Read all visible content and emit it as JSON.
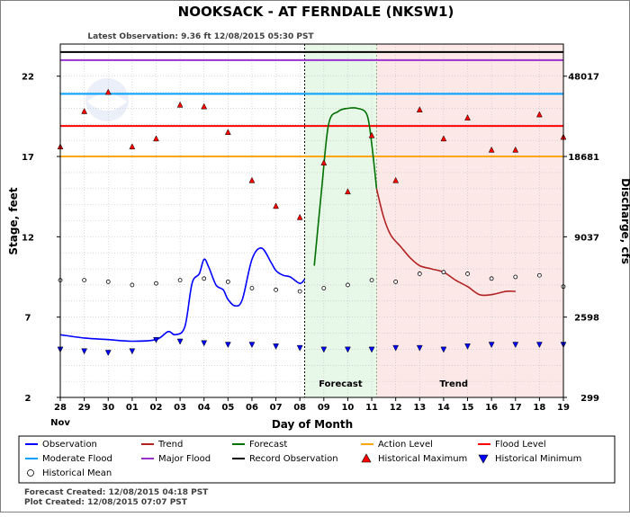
{
  "header": {
    "title": "NOOKSACK - AT FERNDALE  (NKSW1)",
    "latest_observation": "Latest Observation: 9.36 ft 12/08/2015 05:30 PST"
  },
  "footer": {
    "forecast_created": "Forecast Created: 12/08/2015 04:18 PST",
    "plot_created": "Plot Created: 12/08/2015 07:07 PST"
  },
  "colors": {
    "observation": "#0000ff",
    "trend": "#b22222",
    "forecast": "#007000",
    "action": "#ffa500",
    "flood": "#ff0000",
    "moderate": "#00a0ff",
    "major": "#9932cc",
    "record": "#000000",
    "hist_max": "#ff0000",
    "hist_min": "#0000ff",
    "forecast_zone": "#e8f8e8",
    "trend_zone": "#fde8e8"
  },
  "chart_data": {
    "type": "line",
    "xlabel": "Day of Month",
    "ylabel_left": "Stage, feet",
    "ylabel_right": "Discharge, cfs",
    "month_label": "Nov",
    "x_ticks": [
      "28",
      "29",
      "30",
      "01",
      "02",
      "03",
      "04",
      "05",
      "06",
      "07",
      "08",
      "09",
      "10",
      "11",
      "12",
      "13",
      "14",
      "15",
      "16",
      "17",
      "18",
      "19"
    ],
    "xlim": [
      0,
      21
    ],
    "ylim": [
      2,
      24
    ],
    "y_ticks_left": [
      2,
      7,
      12,
      17,
      22
    ],
    "y_ticks_right": [
      {
        "stage": 2,
        "label": "299"
      },
      {
        "stage": 7,
        "label": "2598"
      },
      {
        "stage": 12,
        "label": "9037"
      },
      {
        "stage": 17,
        "label": "18681"
      },
      {
        "stage": 22,
        "label": "48017"
      }
    ],
    "zones": [
      {
        "name": "Forecast",
        "start": 10.2,
        "end": 13.2
      },
      {
        "name": "Trend",
        "start": 13.2,
        "end": 21
      }
    ],
    "current_time": 10.2,
    "levels": [
      {
        "name": "Action Level",
        "stage": 17.0
      },
      {
        "name": "Flood Level",
        "stage": 18.9
      },
      {
        "name": "Moderate Flood",
        "stage": 20.9
      },
      {
        "name": "Major Flood",
        "stage": 23.0
      },
      {
        "name": "Record Observation",
        "stage": 23.5
      }
    ],
    "series": [
      {
        "name": "Observation",
        "x": [
          0,
          1,
          2,
          3,
          4,
          4.5,
          4.8,
          5.2,
          5.5,
          5.8,
          6.0,
          6.2,
          6.5,
          6.8,
          7.0,
          7.3,
          7.6,
          8.0,
          8.4,
          8.8,
          9.0,
          9.3,
          9.6,
          10.0,
          10.2
        ],
        "y": [
          5.9,
          5.7,
          5.6,
          5.5,
          5.6,
          6.1,
          5.9,
          6.4,
          9.1,
          9.7,
          10.6,
          10.1,
          9.0,
          8.7,
          8.1,
          7.7,
          8.1,
          10.6,
          11.3,
          10.4,
          9.9,
          9.6,
          9.5,
          9.1,
          9.36
        ]
      },
      {
        "name": "Forecast",
        "x": [
          10.6,
          10.9,
          11.2,
          11.6,
          12.0,
          12.4,
          12.8,
          13.0,
          13.2
        ],
        "y": [
          10.2,
          14.8,
          19.0,
          19.8,
          20.0,
          20.0,
          19.6,
          17.8,
          15.0
        ]
      },
      {
        "name": "Trend",
        "x": [
          13.2,
          13.5,
          13.8,
          14.2,
          14.6,
          15.0,
          15.5,
          16.0,
          16.5,
          17.0,
          17.5,
          18.0,
          18.6,
          19.0
        ],
        "y": [
          15.0,
          13.2,
          12.1,
          11.4,
          10.7,
          10.2,
          10.0,
          9.8,
          9.3,
          8.9,
          8.4,
          8.4,
          8.6,
          8.6
        ]
      }
    ],
    "historical_maximum": {
      "x": [
        0,
        1,
        2,
        3,
        4,
        5,
        6,
        7,
        8,
        9,
        10,
        11,
        12,
        13,
        14,
        15,
        16,
        17,
        18,
        19,
        20,
        21
      ],
      "y": [
        17.6,
        19.8,
        21.0,
        17.6,
        18.1,
        20.2,
        20.1,
        18.5,
        15.5,
        13.9,
        13.2,
        16.6,
        14.8,
        18.3,
        15.5,
        19.9,
        18.1,
        19.4,
        17.4,
        17.4,
        19.6,
        18.2
      ]
    },
    "historical_minimum": {
      "x": [
        0,
        1,
        2,
        3,
        4,
        5,
        6,
        7,
        8,
        9,
        10,
        11,
        12,
        13,
        14,
        15,
        16,
        17,
        18,
        19,
        20,
        21
      ],
      "y": [
        5.0,
        4.9,
        4.8,
        4.9,
        5.6,
        5.5,
        5.4,
        5.3,
        5.3,
        5.2,
        5.1,
        5.0,
        5.0,
        5.0,
        5.1,
        5.1,
        5.0,
        5.2,
        5.3,
        5.3,
        5.3,
        5.3
      ]
    },
    "historical_mean": {
      "x": [
        0,
        1,
        2,
        3,
        4,
        5,
        6,
        7,
        8,
        9,
        10,
        11,
        12,
        13,
        14,
        15,
        16,
        17,
        18,
        19,
        20,
        21
      ],
      "y": [
        9.3,
        9.3,
        9.2,
        9.0,
        9.1,
        9.3,
        9.4,
        9.2,
        8.8,
        8.7,
        8.6,
        8.8,
        9.0,
        9.3,
        9.2,
        9.7,
        9.8,
        9.7,
        9.4,
        9.5,
        9.6,
        8.9
      ]
    },
    "legend": [
      {
        "label": "Observation",
        "kind": "line",
        "color_key": "observation"
      },
      {
        "label": "Trend",
        "kind": "line",
        "color_key": "trend"
      },
      {
        "label": "Forecast",
        "kind": "line",
        "color_key": "forecast"
      },
      {
        "label": "Action Level",
        "kind": "line",
        "color_key": "action"
      },
      {
        "label": "Flood Level",
        "kind": "line",
        "color_key": "flood"
      },
      {
        "label": "Moderate Flood",
        "kind": "line",
        "color_key": "moderate"
      },
      {
        "label": "Major Flood",
        "kind": "line",
        "color_key": "major"
      },
      {
        "label": "Record Observation",
        "kind": "line",
        "color_key": "record"
      },
      {
        "label": "Historical Maximum",
        "kind": "tri-up",
        "color_key": "hist_max"
      },
      {
        "label": "Historical Minimum",
        "kind": "tri-down",
        "color_key": "hist_min"
      },
      {
        "label": "Historical Mean",
        "kind": "circle",
        "color_key": "record"
      }
    ]
  }
}
